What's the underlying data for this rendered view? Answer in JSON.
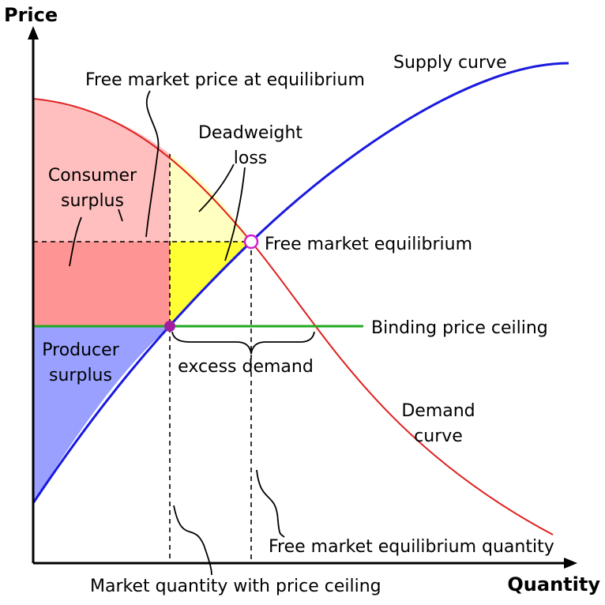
{
  "axes": {
    "y_label": "Price",
    "x_label": "Quantity"
  },
  "labels": {
    "supply_curve": "Supply curve",
    "free_market_price": "Free market price at equilibrium",
    "deadweight_loss": [
      "Deadweight",
      "loss"
    ],
    "consumer_surplus": [
      "Consumer",
      "surplus"
    ],
    "free_market_equilibrium": "Free market equilibrium",
    "binding_price_ceiling": "Binding price ceiling",
    "producer_surplus": [
      "Producer",
      "surplus"
    ],
    "excess_demand": "excess demand",
    "demand_curve": [
      "Demand",
      "curve"
    ],
    "free_market_quantity": "Free market equilibrium quantity",
    "ceiling_quantity": "Market quantity with price ceiling"
  }
}
